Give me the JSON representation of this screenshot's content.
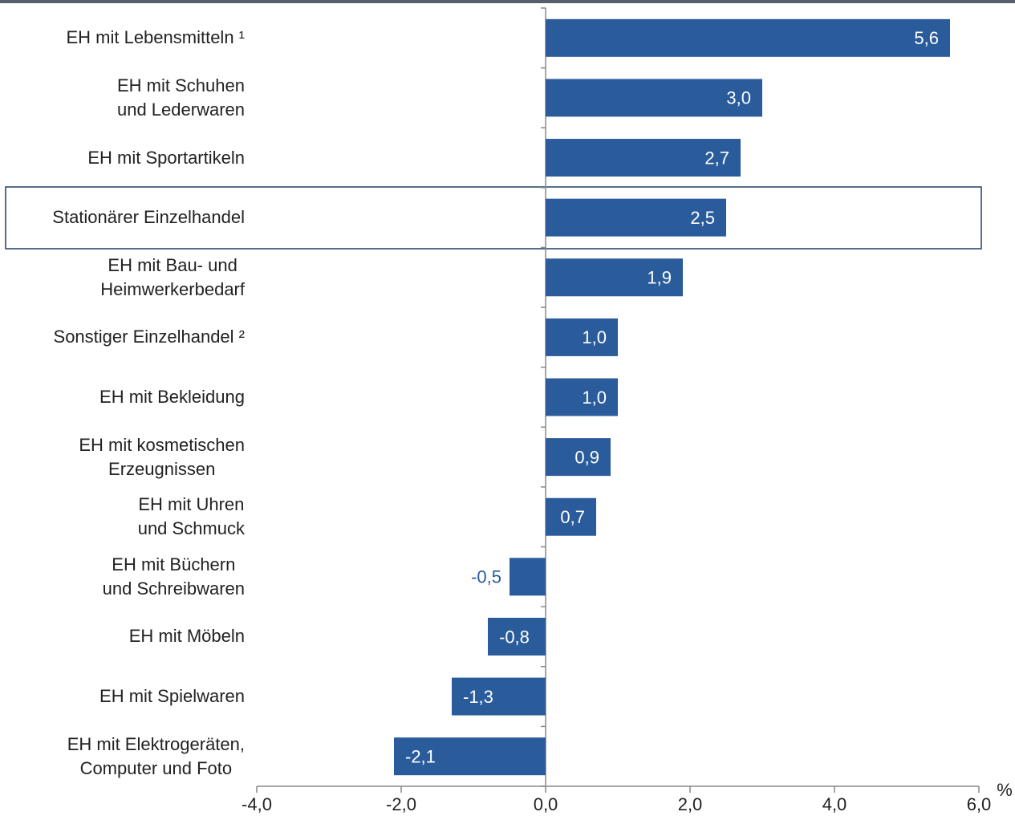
{
  "chart_data": {
    "type": "barh",
    "categories": [
      "EH mit Lebensmitteln ¹",
      "EH mit Schuhen\nund Lederwaren",
      "EH mit Sportartikeln",
      "Stationärer Einzelhandel",
      "EH mit Bau- und\nHeimwerkerbedarf",
      "Sonstiger Einzelhandel ²",
      "EH mit Bekleidung",
      "EH mit kosmetischen\nErzeugnissen",
      "EH mit Uhren\nund Schmuck",
      "EH mit Büchern\nund Schreibwaren",
      "EH mit Möbeln",
      "EH mit Spielwaren",
      "EH mit Elektrogeräten,\nComputer und Foto"
    ],
    "values": [
      5.6,
      3.0,
      2.7,
      2.5,
      1.9,
      1.0,
      1.0,
      0.9,
      0.7,
      -0.5,
      -0.8,
      -1.3,
      -2.1
    ],
    "value_labels": [
      "5,6",
      "3,0",
      "2,7",
      "2,5",
      "1,9",
      "1,0",
      "1,0",
      "0,9",
      "0,7",
      "-0,5",
      "-0,8",
      "-1,3",
      "-2,1"
    ],
    "color": "#2a5b9b",
    "xlabel": "%",
    "xlim": [
      -4,
      6
    ],
    "xticks": [
      {
        "value": -4,
        "label": "-4,0"
      },
      {
        "value": -2,
        "label": "-2,0"
      },
      {
        "value": 0,
        "label": "0,0"
      },
      {
        "value": 2,
        "label": "2,0"
      },
      {
        "value": 4,
        "label": "4,0"
      },
      {
        "value": 6,
        "label": "6,0"
      }
    ]
  }
}
